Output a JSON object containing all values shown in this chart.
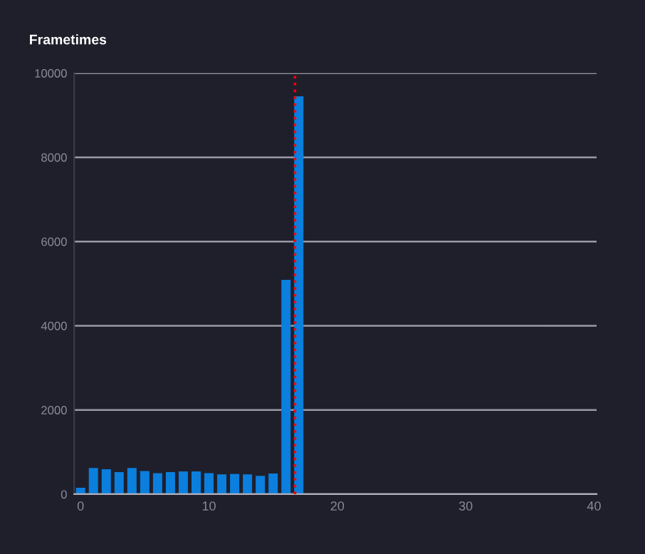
{
  "chart_data": {
    "type": "bar",
    "title": "Frametimes",
    "x": [
      0,
      1,
      2,
      3,
      4,
      5,
      6,
      7,
      8,
      9,
      10,
      11,
      12,
      13,
      14,
      15,
      16,
      17
    ],
    "values": [
      150,
      620,
      590,
      525,
      620,
      550,
      500,
      525,
      540,
      540,
      500,
      470,
      480,
      470,
      435,
      490,
      5090,
      9450
    ],
    "color": "#0a7fde",
    "xlim": [
      -0.5,
      40.2
    ],
    "xticks": [
      0,
      10,
      20,
      30,
      40
    ],
    "ylim": [
      0,
      10000
    ],
    "yticks": [
      0,
      2000,
      4000,
      6000,
      8000,
      10000
    ],
    "grid": "y",
    "ref_lines": [
      {
        "axis": "x",
        "value": 16.7,
        "color": "#ff0000",
        "line_style": "dotted"
      }
    ]
  }
}
